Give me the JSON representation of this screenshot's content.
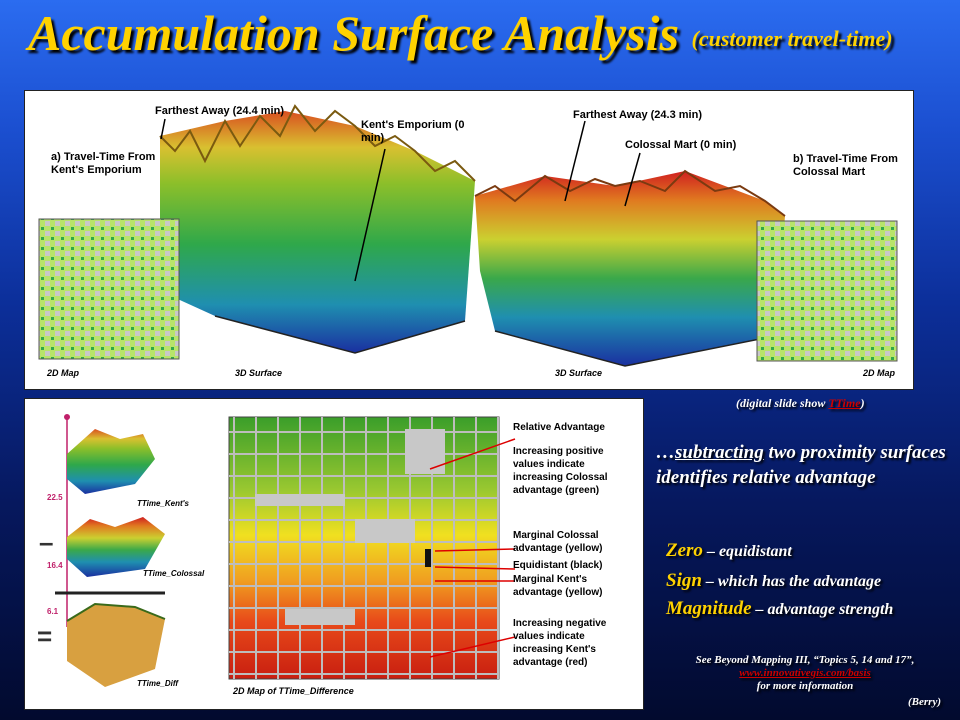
{
  "title": {
    "main": "Accumulation Surface Analysis",
    "sub": "(customer travel-time)"
  },
  "top": {
    "label_a": "a) Travel-Time From Kent's Emporium",
    "label_b": "b) Travel-Time From Colossal Mart",
    "far_a": "Farthest Away (24.4 min)",
    "far_b": "Farthest Away (24.3 min)",
    "store_a": "Kent's Emporium (0 min)",
    "store_b": "Colossal Mart (0 min)",
    "cap_2d_left": "2D Map",
    "cap_3d_left": "3D Surface",
    "cap_3d_right": "3D Surface",
    "cap_2d_right": "2D Map"
  },
  "bottom": {
    "legend_title": "Relative Advantage",
    "legend_items": [
      "Increasing positive values indicate increasing Colossal advantage (green)",
      "Marginal Colossal advantage (yellow)",
      "Equidistant (black)",
      "Marginal Kent's advantage (yellow)",
      "Increasing negative values indicate increasing Kent's advantage (red)"
    ],
    "surf_labels": [
      "TTime_Kent's",
      "TTime_Colossal",
      "TTime_Diff"
    ],
    "axis_values": [
      "22.5",
      "16.4",
      "6.1"
    ],
    "minus": "–",
    "equals": "=",
    "map_caption": "2D Map of TTime_Difference"
  },
  "right": {
    "digital_prefix": "(digital slide show ",
    "digital_link": "TTime",
    "digital_suffix": ")",
    "main_prefix": "…",
    "main_underlined": "subtracting",
    "main_rest": " two proximity surfaces identifies relative advantage",
    "points": [
      {
        "term": "Zero",
        "desc": " – equidistant"
      },
      {
        "term": "Sign",
        "desc": " – which has the advantage"
      },
      {
        "term": "Magnitude",
        "desc": " – advantage strength"
      }
    ],
    "ref_line1": "See Beyond Mapping III, “Topics 5, 14 and 17”,",
    "ref_link": "www.innovativegis.com/basis",
    "ref_line3": "for more information",
    "credit": "(Berry)"
  },
  "colors": {
    "title": "#ffd200",
    "link": "#cc0000"
  }
}
